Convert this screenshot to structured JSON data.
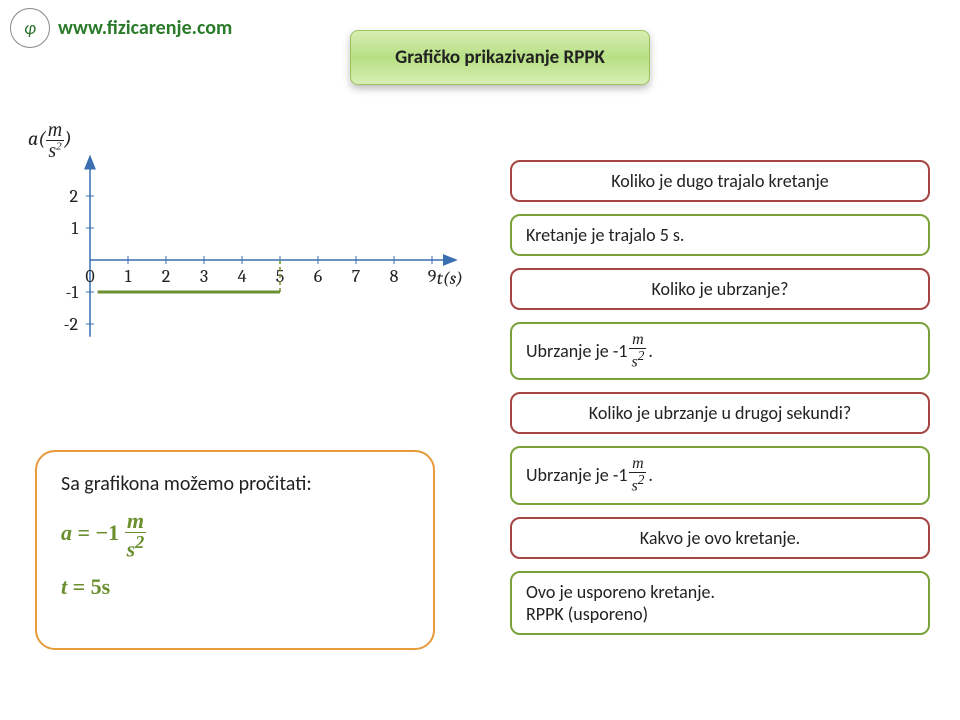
{
  "header": {
    "site_url": "www.fizicarenje.com",
    "title": "Grafičko prikazivanje RPPK"
  },
  "chart": {
    "type": "line",
    "y_axis_label_prefix": "a(",
    "y_axis_unit_num": "m",
    "y_axis_unit_den": "s",
    "y_axis_unit_den_exp": "2",
    "y_axis_label_suffix": ")",
    "x_axis_label_var": "t",
    "x_axis_label_unit": "(s)",
    "x_ticks": [
      "0",
      "1",
      "2",
      "3",
      "4",
      "5",
      "6",
      "7",
      "8",
      "9"
    ],
    "y_ticks_pos": [
      "1",
      "2"
    ],
    "y_ticks_neg": [
      "-1",
      "-2"
    ],
    "xlim": [
      0,
      9.5
    ],
    "ylim": [
      -2.5,
      2.5
    ],
    "series": {
      "color": "#6b8f2f",
      "line_width": 3,
      "start": {
        "x": 0.2,
        "y": -1
      },
      "end": {
        "x": 5,
        "y": -1
      },
      "dashed_end": true
    },
    "axis_color": "#3a6fb0",
    "tick_color": "#3a6fb0",
    "text_color": "#222222",
    "background_color": "#ffffff"
  },
  "reading": {
    "intro": "Sa grafikona možemo pročitati:",
    "eq1_lhs": "a",
    "eq1_eq": " = ",
    "eq1_val": "−1 ",
    "eq1_unit_num": "m",
    "eq1_unit_den": "s",
    "eq1_unit_exp": "2",
    "eq2_lhs": "t",
    "eq2_eq": " = ",
    "eq2_val": "5s"
  },
  "qa": [
    {
      "kind": "question",
      "centered": true,
      "text": "Koliko je dugo trajalo kretanje"
    },
    {
      "kind": "answer",
      "centered": false,
      "text": "Kretanje je trajalo 5 s."
    },
    {
      "kind": "question",
      "centered": true,
      "text": "Koliko je ubrzanje?"
    },
    {
      "kind": "answer",
      "centered": false,
      "rich": "accel",
      "prefix": "Ubrzanje je -1",
      "unit_num": "m",
      "unit_den": "s",
      "unit_exp": "2",
      "suffix": " ."
    },
    {
      "kind": "question",
      "centered": true,
      "text": "Koliko je ubrzanje u drugoj sekundi?"
    },
    {
      "kind": "answer",
      "centered": false,
      "rich": "accel",
      "prefix": "Ubrzanje je -1",
      "unit_num": "m",
      "unit_den": "s",
      "unit_exp": "2",
      "suffix": " ."
    },
    {
      "kind": "question",
      "centered": true,
      "text": "Kakvo je ovo kretanje."
    },
    {
      "kind": "answer",
      "centered": false,
      "text": "Ovo je usporeno kretanje.\nRPPK (usporeno)"
    }
  ],
  "colors": {
    "question_border": "#a64444",
    "answer_border": "#7aa23a",
    "reading_border": "#e69a3a",
    "reading_eq_color": "#6b8f2f"
  }
}
